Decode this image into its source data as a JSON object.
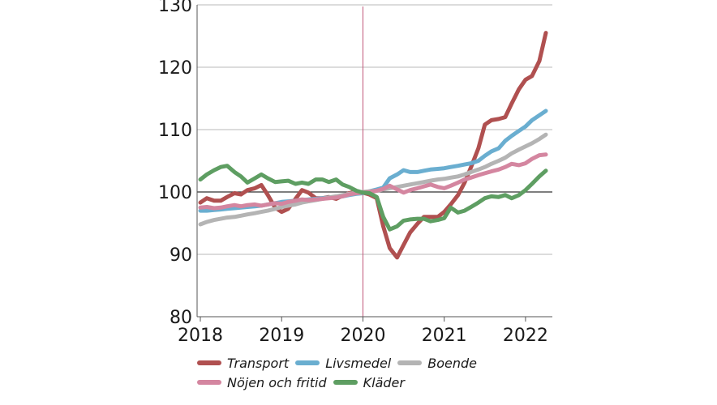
{
  "chart_data": {
    "type": "line",
    "title": "",
    "xlabel": "",
    "ylabel": "",
    "ylim": [
      80,
      130
    ],
    "yticks": [
      80,
      90,
      100,
      110,
      120,
      130
    ],
    "xticks": [
      2018,
      2019,
      2020,
      2021,
      2022
    ],
    "xlim": [
      2017.96,
      2022.33
    ],
    "reference_line_y": 100,
    "reference_line_x": 2020,
    "grid": true,
    "legend_position": "bottom",
    "series": [
      {
        "name": "Transport",
        "color": "#b05050",
        "x": [
          2018.0,
          2018.08,
          2018.17,
          2018.25,
          2018.33,
          2018.42,
          2018.5,
          2018.58,
          2018.67,
          2018.75,
          2018.83,
          2018.92,
          2019.0,
          2019.08,
          2019.17,
          2019.25,
          2019.33,
          2019.42,
          2019.5,
          2019.58,
          2019.67,
          2019.75,
          2019.83,
          2019.92,
          2020.0,
          2020.08,
          2020.17,
          2020.25,
          2020.33,
          2020.42,
          2020.5,
          2020.58,
          2020.67,
          2020.75,
          2020.83,
          2020.92,
          2021.0,
          2021.08,
          2021.17,
          2021.25,
          2021.33,
          2021.42,
          2021.5,
          2021.58,
          2021.67,
          2021.75,
          2021.83,
          2021.92,
          2022.0,
          2022.08,
          2022.17,
          2022.25
        ],
        "y": [
          98.3,
          99.0,
          98.6,
          98.6,
          99.2,
          99.8,
          99.6,
          100.3,
          100.6,
          101.1,
          99.5,
          97.5,
          96.8,
          97.3,
          98.9,
          100.3,
          99.9,
          99.0,
          99.0,
          99.2,
          98.9,
          99.4,
          99.8,
          100.1,
          99.9,
          99.6,
          99.0,
          94.5,
          91.0,
          89.5,
          91.5,
          93.5,
          94.9,
          96.0,
          96.0,
          96.0,
          96.8,
          98.0,
          99.5,
          101.5,
          104.0,
          107.0,
          110.8,
          111.5,
          111.7,
          112.0,
          114.2,
          116.5,
          118.0,
          118.6,
          121.0,
          125.5
        ]
      },
      {
        "name": "Livsmedel",
        "color": "#6aaed0",
        "x": [
          2018.0,
          2018.08,
          2018.17,
          2018.25,
          2018.33,
          2018.42,
          2018.5,
          2018.58,
          2018.67,
          2018.75,
          2018.83,
          2018.92,
          2019.0,
          2019.08,
          2019.17,
          2019.25,
          2019.33,
          2019.42,
          2019.5,
          2019.58,
          2019.67,
          2019.75,
          2019.83,
          2019.92,
          2020.0,
          2020.08,
          2020.17,
          2020.25,
          2020.33,
          2020.42,
          2020.5,
          2020.58,
          2020.67,
          2020.75,
          2020.83,
          2020.92,
          2021.0,
          2021.08,
          2021.17,
          2021.25,
          2021.33,
          2021.42,
          2021.5,
          2021.58,
          2021.67,
          2021.75,
          2021.83,
          2021.92,
          2022.0,
          2022.08,
          2022.17,
          2022.25
        ],
        "y": [
          97.0,
          97.0,
          97.1,
          97.2,
          97.3,
          97.4,
          97.5,
          97.6,
          97.7,
          97.8,
          98.0,
          98.2,
          98.4,
          98.5,
          98.6,
          98.7,
          98.8,
          98.9,
          99.0,
          99.1,
          99.2,
          99.3,
          99.5,
          99.7,
          99.8,
          100.1,
          100.4,
          100.7,
          102.2,
          102.8,
          103.5,
          103.2,
          103.2,
          103.4,
          103.6,
          103.7,
          103.8,
          104.0,
          104.2,
          104.4,
          104.6,
          105.0,
          105.8,
          106.5,
          107.0,
          108.2,
          109.0,
          109.8,
          110.5,
          111.5,
          112.3,
          113.0
        ]
      },
      {
        "name": "Boende",
        "color": "#b4b4b4",
        "x": [
          2018.0,
          2018.08,
          2018.17,
          2018.25,
          2018.33,
          2018.42,
          2018.5,
          2018.58,
          2018.67,
          2018.75,
          2018.83,
          2018.92,
          2019.0,
          2019.08,
          2019.17,
          2019.25,
          2019.33,
          2019.42,
          2019.5,
          2019.58,
          2019.67,
          2019.75,
          2019.83,
          2019.92,
          2020.0,
          2020.08,
          2020.17,
          2020.25,
          2020.33,
          2020.42,
          2020.5,
          2020.58,
          2020.67,
          2020.75,
          2020.83,
          2020.92,
          2021.0,
          2021.08,
          2021.17,
          2021.25,
          2021.33,
          2021.42,
          2021.5,
          2021.58,
          2021.67,
          2021.75,
          2021.83,
          2021.92,
          2022.0,
          2022.08,
          2022.17,
          2022.25
        ],
        "y": [
          94.8,
          95.2,
          95.5,
          95.7,
          95.9,
          96.0,
          96.2,
          96.4,
          96.6,
          96.8,
          97.0,
          97.3,
          97.6,
          97.8,
          98.0,
          98.3,
          98.5,
          98.7,
          98.9,
          99.1,
          99.3,
          99.5,
          99.7,
          99.9,
          100.0,
          100.1,
          100.2,
          100.4,
          100.6,
          100.8,
          101.0,
          101.2,
          101.4,
          101.6,
          101.8,
          102.0,
          102.1,
          102.3,
          102.5,
          102.8,
          103.2,
          103.6,
          104.0,
          104.5,
          105.0,
          105.5,
          106.2,
          106.8,
          107.3,
          107.8,
          108.5,
          109.2
        ]
      },
      {
        "name": "Nöjen och fritid",
        "color": "#d486a0",
        "x": [
          2018.0,
          2018.08,
          2018.17,
          2018.25,
          2018.33,
          2018.42,
          2018.5,
          2018.58,
          2018.67,
          2018.75,
          2018.83,
          2018.92,
          2019.0,
          2019.08,
          2019.17,
          2019.25,
          2019.33,
          2019.42,
          2019.5,
          2019.58,
          2019.67,
          2019.75,
          2019.83,
          2019.92,
          2020.0,
          2020.08,
          2020.17,
          2020.25,
          2020.33,
          2020.42,
          2020.5,
          2020.58,
          2020.67,
          2020.75,
          2020.83,
          2020.92,
          2021.0,
          2021.08,
          2021.17,
          2021.25,
          2021.33,
          2021.42,
          2021.5,
          2021.58,
          2021.67,
          2021.75,
          2021.83,
          2021.92,
          2022.0,
          2022.08,
          2022.17,
          2022.25
        ],
        "y": [
          97.5,
          97.6,
          97.4,
          97.5,
          97.7,
          97.9,
          97.7,
          97.9,
          98.0,
          97.8,
          98.0,
          98.2,
          98.1,
          98.4,
          98.6,
          98.8,
          98.7,
          98.8,
          98.9,
          99.0,
          99.1,
          99.3,
          99.6,
          99.8,
          99.9,
          100.0,
          100.2,
          100.5,
          101.0,
          100.4,
          99.9,
          100.3,
          100.6,
          100.9,
          101.2,
          100.8,
          100.6,
          101.0,
          101.5,
          102.0,
          102.3,
          102.7,
          103.0,
          103.3,
          103.6,
          104.0,
          104.5,
          104.3,
          104.6,
          105.3,
          105.9,
          106.0
        ]
      },
      {
        "name": "Kläder",
        "color": "#5e9e62",
        "x": [
          2018.0,
          2018.08,
          2018.17,
          2018.25,
          2018.33,
          2018.42,
          2018.5,
          2018.58,
          2018.67,
          2018.75,
          2018.83,
          2018.92,
          2019.0,
          2019.08,
          2019.17,
          2019.25,
          2019.33,
          2019.42,
          2019.5,
          2019.58,
          2019.67,
          2019.75,
          2019.83,
          2019.92,
          2020.0,
          2020.08,
          2020.17,
          2020.25,
          2020.33,
          2020.42,
          2020.5,
          2020.58,
          2020.67,
          2020.75,
          2020.83,
          2020.92,
          2021.0,
          2021.08,
          2021.17,
          2021.25,
          2021.33,
          2021.42,
          2021.5,
          2021.58,
          2021.67,
          2021.75,
          2021.83,
          2021.92,
          2022.0,
          2022.08,
          2022.17,
          2022.25
        ],
        "y": [
          102.0,
          102.8,
          103.5,
          104.0,
          104.2,
          103.2,
          102.5,
          101.5,
          102.2,
          102.8,
          102.2,
          101.6,
          101.7,
          101.8,
          101.3,
          101.5,
          101.3,
          102.0,
          102.0,
          101.6,
          102.0,
          101.2,
          100.8,
          100.2,
          99.9,
          99.8,
          99.2,
          96.0,
          94.0,
          94.5,
          95.4,
          95.6,
          95.7,
          95.7,
          95.3,
          95.5,
          95.8,
          97.5,
          96.7,
          97.0,
          97.6,
          98.3,
          99.0,
          99.3,
          99.2,
          99.5,
          99.0,
          99.5,
          100.3,
          101.3,
          102.5,
          103.4
        ]
      }
    ],
    "legend": {
      "rows": [
        [
          "Transport",
          "Livsmedel",
          "Boende"
        ],
        [
          "Nöjen och fritid",
          "Kläder"
        ]
      ]
    }
  }
}
